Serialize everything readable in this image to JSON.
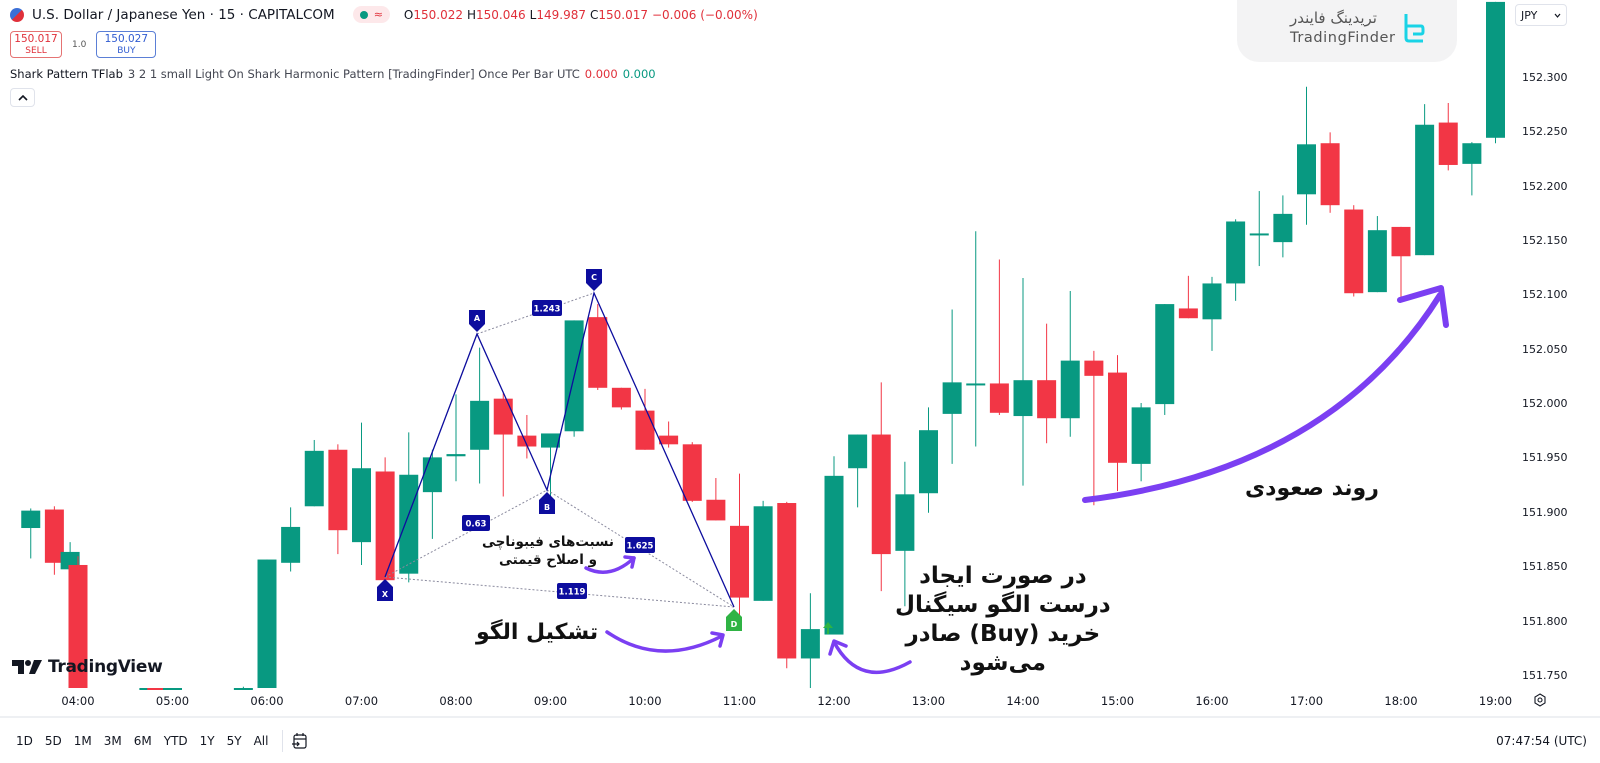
{
  "header": {
    "symbol": "U.S. Dollar / Japanese Yen · 15 · CAPITALCOM",
    "status_icon": "market-open-dot",
    "ohlc": {
      "open_label": "O",
      "open": "150.022",
      "high_label": "H",
      "high": "150.046",
      "low_label": "L",
      "low": "149.987",
      "close_label": "C",
      "close": "150.017",
      "change": "−0.006 (−0.00%)"
    }
  },
  "trade": {
    "sell_price": "150.017",
    "sell_label": "SELL",
    "spread": "1.0",
    "buy_price": "150.027",
    "buy_label": "BUY"
  },
  "indicator": {
    "name": "Shark Pattern TFlab",
    "args": "3 2 1 small Light On Shark Harmonic Pattern [TradingFinder] Once Per Bar UTC",
    "value1": "0.000",
    "value2": "0.000",
    "collapse_icon": "chevron-up-icon"
  },
  "brand": {
    "name_fa": "تریدینگ فایندر",
    "name_en": "TradingFinder"
  },
  "currency": {
    "value": "JPY"
  },
  "price_axis": [
    "152.300",
    "152.250",
    "152.200",
    "152.150",
    "152.100",
    "152.050",
    "152.000",
    "151.950",
    "151.900",
    "151.850",
    "151.800",
    "151.750"
  ],
  "time_axis": [
    "04:00",
    "05:00",
    "06:00",
    "07:00",
    "08:00",
    "09:00",
    "10:00",
    "11:00",
    "12:00",
    "13:00",
    "14:00",
    "15:00",
    "16:00",
    "17:00",
    "18:00",
    "19:00"
  ],
  "watermark": "TradingView",
  "bottom": {
    "ranges": [
      "1D",
      "5D",
      "1M",
      "3M",
      "6M",
      "YTD",
      "1Y",
      "5Y",
      "All"
    ],
    "goto_icon": "calendar-goto-icon",
    "clock": "07:47:54 (UTC)"
  },
  "pattern": {
    "points": [
      {
        "label": "X",
        "price": 151.82
      },
      {
        "label": "A",
        "price": 152.057
      },
      {
        "label": "B",
        "price": 151.893
      },
      {
        "label": "C",
        "price": 152.092
      },
      {
        "label": "D",
        "price": 151.803
      }
    ],
    "ratios": [
      {
        "label": "0.63"
      },
      {
        "label": "1.243"
      },
      {
        "label": "1.625"
      },
      {
        "label": "1.119"
      }
    ]
  },
  "annotations": {
    "fib_line1": "نسبت‌های فیبوناچی",
    "fib_line2": "و اصلاح قیمتی",
    "formation": "تشکیل الگو",
    "signal_line1": "در صورت ایجاد",
    "signal_line2": "درست الگو سیگنال",
    "signal_line3": "خرید (Buy) صادر",
    "signal_line4": "می‌شود",
    "trend": "روند صعودی"
  },
  "colors": {
    "up": "#089981",
    "down": "#f23645",
    "pattern": "#0d0d9e",
    "d_point": "#2fb344",
    "arrow": "#7b3ff2"
  },
  "chart_data": {
    "type": "candlestick",
    "title": "U.S. Dollar / Japanese Yen · 15 · CAPITALCOM",
    "ylim": [
      151.72,
      152.37
    ],
    "candles": [
      {
        "t": "03:30",
        "o": 151.886,
        "h": 151.904,
        "l": 151.858,
        "c": 151.902
      },
      {
        "t": "03:45",
        "o": 151.903,
        "h": 151.906,
        "l": 151.843,
        "c": 151.854
      },
      {
        "t": "03:55",
        "o": 151.848,
        "h": 151.873,
        "l": 151.832,
        "c": 151.864
      },
      {
        "t": "04:00",
        "o": 151.852,
        "h": 151.86,
        "l": 151.72,
        "c": 151.72
      },
      {
        "t": "04:45",
        "o": 151.722,
        "h": 151.725,
        "l": 151.72,
        "c": 151.724
      },
      {
        "t": "04:50",
        "o": 151.724,
        "h": 151.734,
        "l": 151.72,
        "c": 151.72
      },
      {
        "t": "05:00",
        "o": 151.722,
        "h": 151.731,
        "l": 151.718,
        "c": 151.722
      },
      {
        "t": "05:45",
        "o": 151.724,
        "h": 151.74,
        "l": 151.72,
        "c": 151.736
      },
      {
        "t": "06:00",
        "o": 151.737,
        "h": 151.857,
        "l": 151.733,
        "c": 151.857
      },
      {
        "t": "06:15",
        "o": 151.854,
        "h": 151.905,
        "l": 151.846,
        "c": 151.887
      },
      {
        "t": "06:30",
        "o": 151.906,
        "h": 151.967,
        "l": 151.906,
        "c": 151.957
      },
      {
        "t": "06:45",
        "o": 151.958,
        "h": 151.963,
        "l": 151.862,
        "c": 151.884
      },
      {
        "t": "07:00",
        "o": 151.873,
        "h": 151.983,
        "l": 151.852,
        "c": 151.941
      },
      {
        "t": "07:15",
        "o": 151.938,
        "h": 151.951,
        "l": 151.843,
        "c": 151.838
      },
      {
        "t": "07:30",
        "o": 151.844,
        "h": 151.974,
        "l": 151.836,
        "c": 151.935
      },
      {
        "t": "07:45",
        "o": 151.919,
        "h": 151.958,
        "l": 151.876,
        "c": 151.951
      },
      {
        "t": "08:00",
        "o": 151.952,
        "h": 152.009,
        "l": 151.929,
        "c": 151.954
      },
      {
        "t": "08:15",
        "o": 151.958,
        "h": 152.052,
        "l": 151.927,
        "c": 152.003
      },
      {
        "t": "08:30",
        "o": 152.005,
        "h": 152.01,
        "l": 151.915,
        "c": 151.972
      },
      {
        "t": "08:45",
        "o": 151.971,
        "h": 151.99,
        "l": 151.95,
        "c": 151.961
      },
      {
        "t": "09:00",
        "o": 151.96,
        "h": 151.973,
        "l": 151.9,
        "c": 151.973
      },
      {
        "t": "09:15",
        "o": 151.975,
        "h": 152.077,
        "l": 151.97,
        "c": 152.077
      },
      {
        "t": "09:30",
        "o": 152.08,
        "h": 152.092,
        "l": 152.013,
        "c": 152.015
      },
      {
        "t": "09:45",
        "o": 152.015,
        "h": 152.015,
        "l": 151.995,
        "c": 151.997
      },
      {
        "t": "10:00",
        "o": 151.994,
        "h": 152.014,
        "l": 151.958,
        "c": 151.958
      },
      {
        "t": "10:15",
        "o": 151.971,
        "h": 151.984,
        "l": 151.96,
        "c": 151.963
      },
      {
        "t": "10:30",
        "o": 151.963,
        "h": 151.965,
        "l": 151.91,
        "c": 151.911
      },
      {
        "t": "10:45",
        "o": 151.912,
        "h": 151.932,
        "l": 151.895,
        "c": 151.893
      },
      {
        "t": "11:00",
        "o": 151.888,
        "h": 151.936,
        "l": 151.803,
        "c": 151.822
      },
      {
        "t": "11:15",
        "o": 151.819,
        "h": 151.911,
        "l": 151.825,
        "c": 151.906
      },
      {
        "t": "11:30",
        "o": 151.909,
        "h": 151.91,
        "l": 151.757,
        "c": 151.766
      },
      {
        "t": "11:45",
        "o": 151.766,
        "h": 151.826,
        "l": 151.721,
        "c": 151.793
      },
      {
        "t": "12:00",
        "o": 151.788,
        "h": 151.952,
        "l": 151.788,
        "c": 151.934
      },
      {
        "t": "12:15",
        "o": 151.941,
        "h": 151.956,
        "l": 151.905,
        "c": 151.972
      },
      {
        "t": "12:30",
        "o": 151.972,
        "h": 152.02,
        "l": 151.828,
        "c": 151.862
      },
      {
        "t": "12:45",
        "o": 151.865,
        "h": 151.947,
        "l": 151.814,
        "c": 151.917
      },
      {
        "t": "13:00",
        "o": 151.918,
        "h": 151.997,
        "l": 151.9,
        "c": 151.976
      },
      {
        "t": "13:15",
        "o": 151.991,
        "h": 152.087,
        "l": 151.945,
        "c": 152.02
      },
      {
        "t": "13:30",
        "o": 152.019,
        "h": 152.159,
        "l": 151.961,
        "c": 152.019
      },
      {
        "t": "13:45",
        "o": 152.019,
        "h": 152.133,
        "l": 151.99,
        "c": 151.992
      },
      {
        "t": "14:00",
        "o": 151.989,
        "h": 152.116,
        "l": 151.925,
        "c": 152.022
      },
      {
        "t": "14:15",
        "o": 152.022,
        "h": 152.074,
        "l": 151.964,
        "c": 151.987
      },
      {
        "t": "14:30",
        "o": 151.987,
        "h": 152.104,
        "l": 151.97,
        "c": 152.04
      },
      {
        "t": "14:45",
        "o": 152.04,
        "h": 152.049,
        "l": 151.907,
        "c": 152.026
      },
      {
        "t": "15:00",
        "o": 152.029,
        "h": 152.045,
        "l": 151.92,
        "c": 151.946
      },
      {
        "t": "15:15",
        "o": 151.945,
        "h": 152.001,
        "l": 151.929,
        "c": 151.997
      },
      {
        "t": "15:30",
        "o": 152.0,
        "h": 152.092,
        "l": 151.99,
        "c": 152.092
      },
      {
        "t": "15:45",
        "o": 152.088,
        "h": 152.118,
        "l": 152.079,
        "c": 152.079
      },
      {
        "t": "16:00",
        "o": 152.078,
        "h": 152.117,
        "l": 152.049,
        "c": 152.111
      },
      {
        "t": "16:15",
        "o": 152.111,
        "h": 152.17,
        "l": 152.095,
        "c": 152.168
      },
      {
        "t": "16:30",
        "o": 152.157,
        "h": 152.196,
        "l": 152.127,
        "c": 152.157
      },
      {
        "t": "16:45",
        "o": 152.149,
        "h": 152.192,
        "l": 152.135,
        "c": 152.175
      },
      {
        "t": "17:00",
        "o": 152.193,
        "h": 152.292,
        "l": 152.165,
        "c": 152.239
      },
      {
        "t": "17:15",
        "o": 152.24,
        "h": 152.25,
        "l": 152.176,
        "c": 152.183
      },
      {
        "t": "17:30",
        "o": 152.179,
        "h": 152.183,
        "l": 152.099,
        "c": 152.102
      },
      {
        "t": "17:45",
        "o": 152.103,
        "h": 152.173,
        "l": 152.103,
        "c": 152.16
      },
      {
        "t": "18:00",
        "o": 152.163,
        "h": 152.163,
        "l": 152.094,
        "c": 152.136
      },
      {
        "t": "18:15",
        "o": 152.137,
        "h": 152.276,
        "l": 152.137,
        "c": 152.257
      },
      {
        "t": "18:30",
        "o": 152.259,
        "h": 152.277,
        "l": 152.215,
        "c": 152.22
      },
      {
        "t": "18:45",
        "o": 152.221,
        "h": 152.241,
        "l": 152.192,
        "c": 152.24
      },
      {
        "t": "19:00",
        "o": 152.245,
        "h": 152.37,
        "l": 152.24,
        "c": 152.37
      },
      {
        "t": "19:15",
        "o": 152.348,
        "h": 152.37,
        "l": 152.324,
        "c": 152.348
      }
    ]
  }
}
